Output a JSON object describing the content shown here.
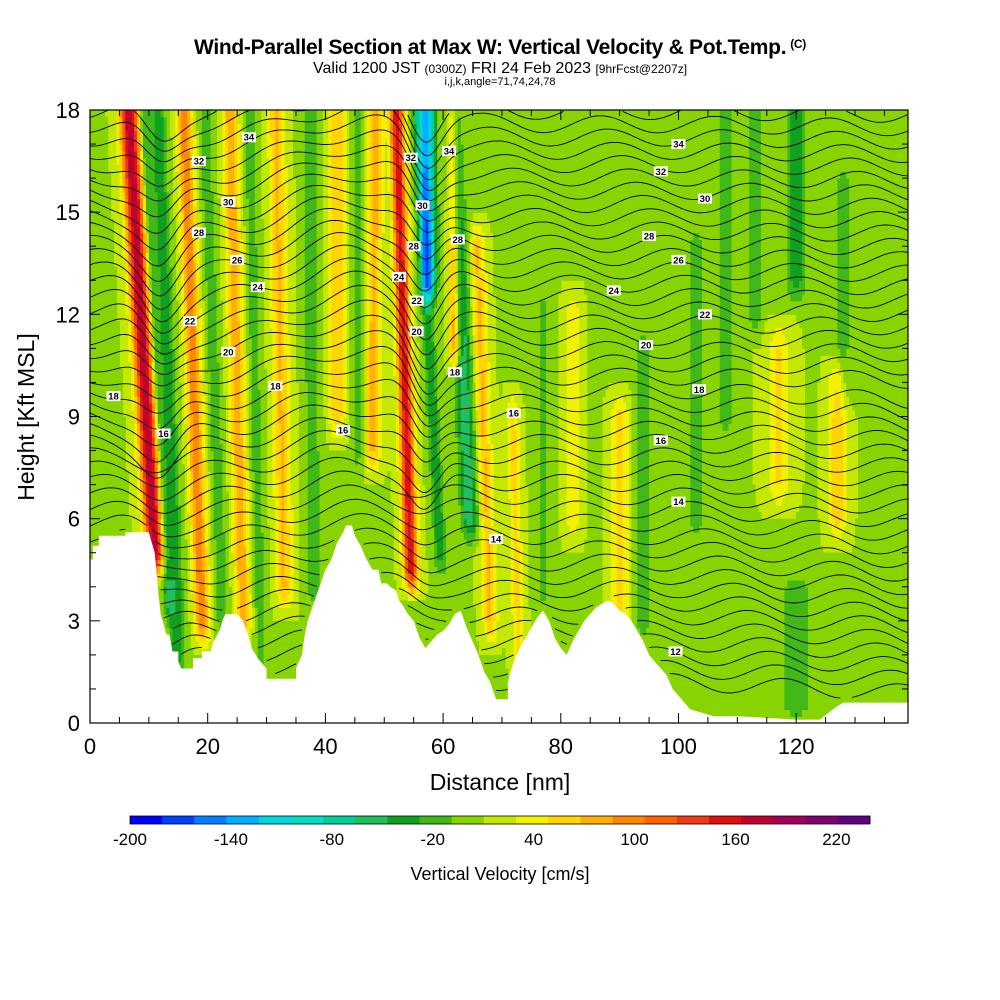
{
  "header": {
    "title": "Wind-Parallel Section at Max W: Vertical Velocity & Pot.Temp.",
    "copyright": "(C)",
    "valid_main": "Valid 1200 JST",
    "valid_zulu": "(0300Z)",
    "valid_date": "FRI 24 Feb 2023",
    "forecast": "[9hrFcst@2207z]",
    "indices": "i,j,k,angle=71,74,24,78"
  },
  "chart_data": {
    "type": "heatmap",
    "xlabel": "Distance [nm]",
    "ylabel": "Height [Kft MSL]",
    "xlim": [
      0,
      139
    ],
    "ylim": [
      0,
      18
    ],
    "x_ticks": [
      0,
      20,
      40,
      60,
      80,
      100,
      120
    ],
    "y_ticks": [
      0,
      3,
      6,
      9,
      12,
      15,
      18
    ],
    "colorbar": {
      "label": "Vertical Velocity [cm/s]",
      "tick_labels": [
        "-200",
        "-140",
        "-80",
        "-20",
        "40",
        "100",
        "160",
        "220"
      ],
      "tick_values": [
        -200,
        -140,
        -80,
        -20,
        40,
        100,
        160,
        220
      ],
      "range": [
        -200,
        240
      ],
      "colors": [
        "#0000ff",
        "#0040ff",
        "#0080ff",
        "#00b0ff",
        "#00d8e0",
        "#00e0c0",
        "#00d098",
        "#20c060",
        "#10a020",
        "#40b818",
        "#88d400",
        "#c4e800",
        "#f2f200",
        "#ffd400",
        "#ffb000",
        "#ff8800",
        "#ff6000",
        "#f03818",
        "#e01010",
        "#c00030",
        "#a00058",
        "#800070",
        "#600080"
      ]
    },
    "theta_contour_labels": [
      {
        "x": 27,
        "y": 17.2,
        "label": "34"
      },
      {
        "x": 61,
        "y": 16.8,
        "label": "34"
      },
      {
        "x": 100,
        "y": 17.0,
        "label": "34"
      },
      {
        "x": 18.5,
        "y": 16.5,
        "label": "32"
      },
      {
        "x": 54.5,
        "y": 16.6,
        "label": "32"
      },
      {
        "x": 97,
        "y": 16.2,
        "label": "32"
      },
      {
        "x": 23.5,
        "y": 15.3,
        "label": "30"
      },
      {
        "x": 56.5,
        "y": 15.2,
        "label": "30"
      },
      {
        "x": 104.5,
        "y": 15.4,
        "label": "30"
      },
      {
        "x": 18.5,
        "y": 14.4,
        "label": "28"
      },
      {
        "x": 55,
        "y": 14.0,
        "label": "28"
      },
      {
        "x": 62.5,
        "y": 14.2,
        "label": "28"
      },
      {
        "x": 95,
        "y": 14.3,
        "label": "28"
      },
      {
        "x": 25,
        "y": 13.6,
        "label": "26"
      },
      {
        "x": 100,
        "y": 13.6,
        "label": "26"
      },
      {
        "x": 52.5,
        "y": 13.1,
        "label": "24"
      },
      {
        "x": 28.5,
        "y": 12.8,
        "label": "24"
      },
      {
        "x": 89,
        "y": 12.7,
        "label": "24"
      },
      {
        "x": 55.5,
        "y": 12.4,
        "label": "22"
      },
      {
        "x": 17,
        "y": 11.8,
        "label": "22"
      },
      {
        "x": 104.5,
        "y": 12.0,
        "label": "22"
      },
      {
        "x": 55.5,
        "y": 11.5,
        "label": "20"
      },
      {
        "x": 23.5,
        "y": 10.9,
        "label": "20"
      },
      {
        "x": 94.5,
        "y": 11.1,
        "label": "20"
      },
      {
        "x": 62,
        "y": 10.3,
        "label": "18"
      },
      {
        "x": 4,
        "y": 9.6,
        "label": "18"
      },
      {
        "x": 31.5,
        "y": 9.9,
        "label": "18"
      },
      {
        "x": 103.5,
        "y": 9.8,
        "label": "18"
      },
      {
        "x": 72,
        "y": 9.1,
        "label": "16"
      },
      {
        "x": 43,
        "y": 8.6,
        "label": "16"
      },
      {
        "x": 12.5,
        "y": 8.5,
        "label": "16"
      },
      {
        "x": 97,
        "y": 8.3,
        "label": "16"
      },
      {
        "x": 100,
        "y": 6.5,
        "label": "14"
      },
      {
        "x": 69,
        "y": 5.4,
        "label": "14"
      },
      {
        "x": 99.5,
        "y": 2.1,
        "label": "12"
      }
    ]
  }
}
